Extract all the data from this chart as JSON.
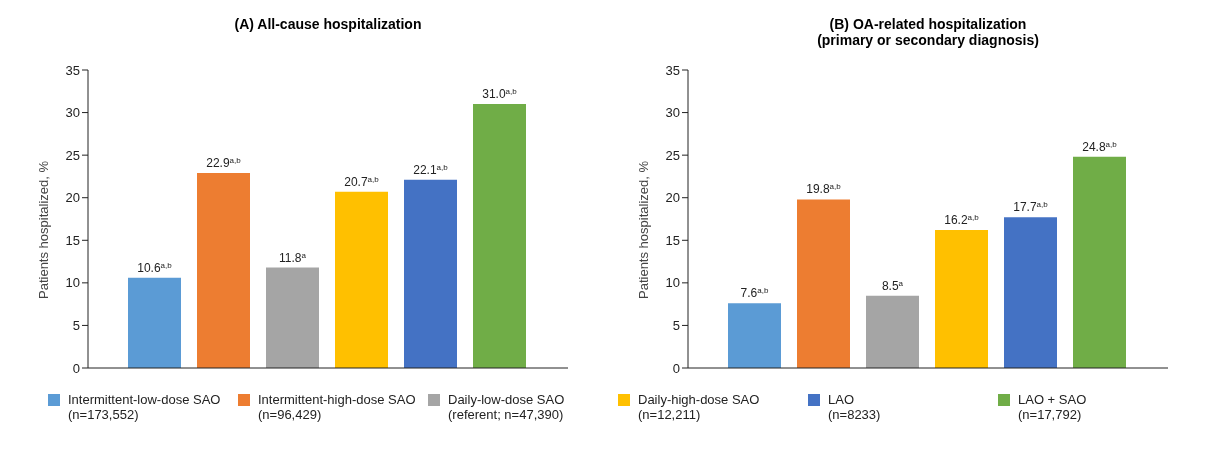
{
  "chart_data": [
    {
      "type": "bar",
      "title": "(A) All-cause hospitalization",
      "ylabel": "Patients hospitalized, %",
      "categories": [
        null
      ],
      "ylim": [
        0,
        35
      ],
      "yticks": [
        0,
        5,
        10,
        15,
        20,
        25,
        30,
        35
      ],
      "tick_labels": "y",
      "grid": false,
      "legend": "bottom",
      "series": [
        {
          "name": "Intermittent-low-dose SAO (n=173,552)",
          "color": "#5b9bd5",
          "values": [
            10.6
          ],
          "value_labels": [
            "10.6$^{a,b}$"
          ]
        },
        {
          "name": "Intermittent-high-dose SAO (n=96,429)",
          "color": "#ed7d31",
          "values": [
            22.9
          ],
          "value_labels": [
            "22.9$^{a,b}$"
          ]
        },
        {
          "name": "Daily-low-dose SAO (referent; n=47,390)",
          "color": "#a5a5a5",
          "values": [
            11.8
          ],
          "value_labels": [
            "11.8$^{a}$"
          ]
        },
        {
          "name": "Daily-high-dose SAO (n=12,211)",
          "color": "#ffc000",
          "values": [
            20.7
          ],
          "value_labels": [
            "20.7$^{a,b}$"
          ]
        },
        {
          "name": "LAO (n=8233)",
          "color": "#4472c4",
          "values": [
            22.1
          ],
          "value_labels": [
            "22.1$^{a,b}$"
          ]
        },
        {
          "name": "LAO + SAO (n=17,792)",
          "color": "#70ad47",
          "values": [
            31.0
          ],
          "value_labels": [
            "31.0$^{a,b}$"
          ]
        }
      ]
    },
    {
      "type": "bar",
      "title": "(B) OA-related hospitalization",
      "subtitle": "(primary or secondary diagnosis)",
      "ylabel": "Patients hospitalized, %",
      "categories": [
        null
      ],
      "ylim": [
        0,
        35
      ],
      "yticks": [
        0,
        5,
        10,
        15,
        20,
        25,
        30,
        35
      ],
      "tick_labels": "y",
      "grid": false,
      "series": [
        {
          "color": "#5b9bd5",
          "values": [
            7.6
          ],
          "value_labels": [
            "7.6$^{a,b}$"
          ]
        },
        {
          "color": "#ed7d31",
          "values": [
            19.8
          ],
          "value_labels": [
            "19.8$^{a,b}$"
          ]
        },
        {
          "color": "#a5a5a5",
          "values": [
            8.5
          ],
          "value_labels": [
            "8.5$^{a}$"
          ]
        },
        {
          "color": "#ffc000",
          "values": [
            16.2
          ],
          "value_labels": [
            "16.2$^{a,b}$"
          ]
        },
        {
          "color": "#4472c4",
          "values": [
            17.7
          ],
          "value_labels": [
            "17.7$^{a,b}$"
          ]
        },
        {
          "color": "#70ad47",
          "values": [
            24.8
          ],
          "value_labels": [
            "24.8$^{a,b}$"
          ]
        }
      ]
    }
  ]
}
